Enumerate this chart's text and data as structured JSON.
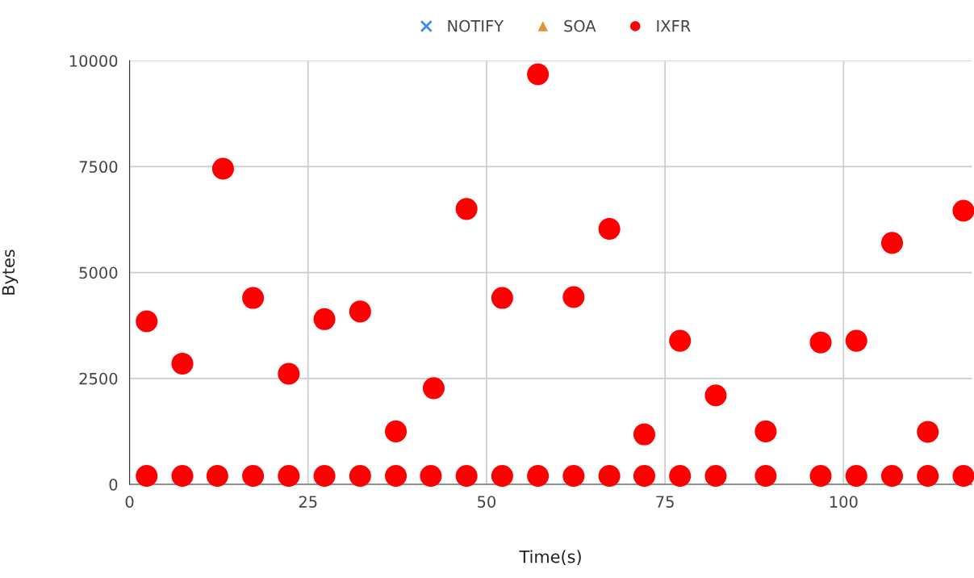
{
  "chart_data": {
    "type": "scatter",
    "xlabel": "Time(s)",
    "ylabel": "Bytes",
    "xlim": [
      0,
      118
    ],
    "xticks": [
      0,
      25,
      50,
      75,
      100
    ],
    "ylim": [
      0,
      10000
    ],
    "yticks": [
      0,
      2500,
      5000,
      7500,
      10000
    ],
    "grid": true,
    "legend": "top",
    "series": [
      {
        "name": "NOTIFY",
        "color": "#4285f4",
        "marker": "cross"
      },
      {
        "name": "SOA",
        "color": "#e69138",
        "marker": "triangle"
      },
      {
        "name": "IXFR",
        "color": "#ff0000",
        "marker": "circle",
        "x": [
          2.4,
          7.4,
          12.3,
          17.3,
          22.3,
          27.3,
          32.3,
          37.3,
          42.2,
          47.2,
          52.2,
          57.2,
          62.2,
          67.2,
          72.1,
          77.1,
          82.1,
          89.1,
          96.8,
          101.8,
          106.8,
          111.8,
          116.8,
          2.4,
          7.4,
          13.1,
          17.3,
          22.3,
          27.3,
          32.3,
          37.3,
          42.6,
          47.2,
          52.2,
          57.2,
          62.2,
          67.2,
          72.1,
          77.1,
          82.1,
          89.1,
          96.8,
          101.8,
          106.8,
          111.8,
          116.8
        ],
        "values": [
          200,
          200,
          200,
          200,
          200,
          200,
          200,
          200,
          200,
          200,
          200,
          200,
          200,
          200,
          200,
          200,
          200,
          200,
          200,
          200,
          200,
          200,
          200,
          3850,
          2850,
          7450,
          4400,
          2610,
          3900,
          4080,
          1250,
          2270,
          6500,
          4400,
          9680,
          4420,
          6030,
          1180,
          3390,
          2100,
          1250,
          3350,
          3390,
          5700,
          1240,
          6460
        ]
      }
    ]
  }
}
